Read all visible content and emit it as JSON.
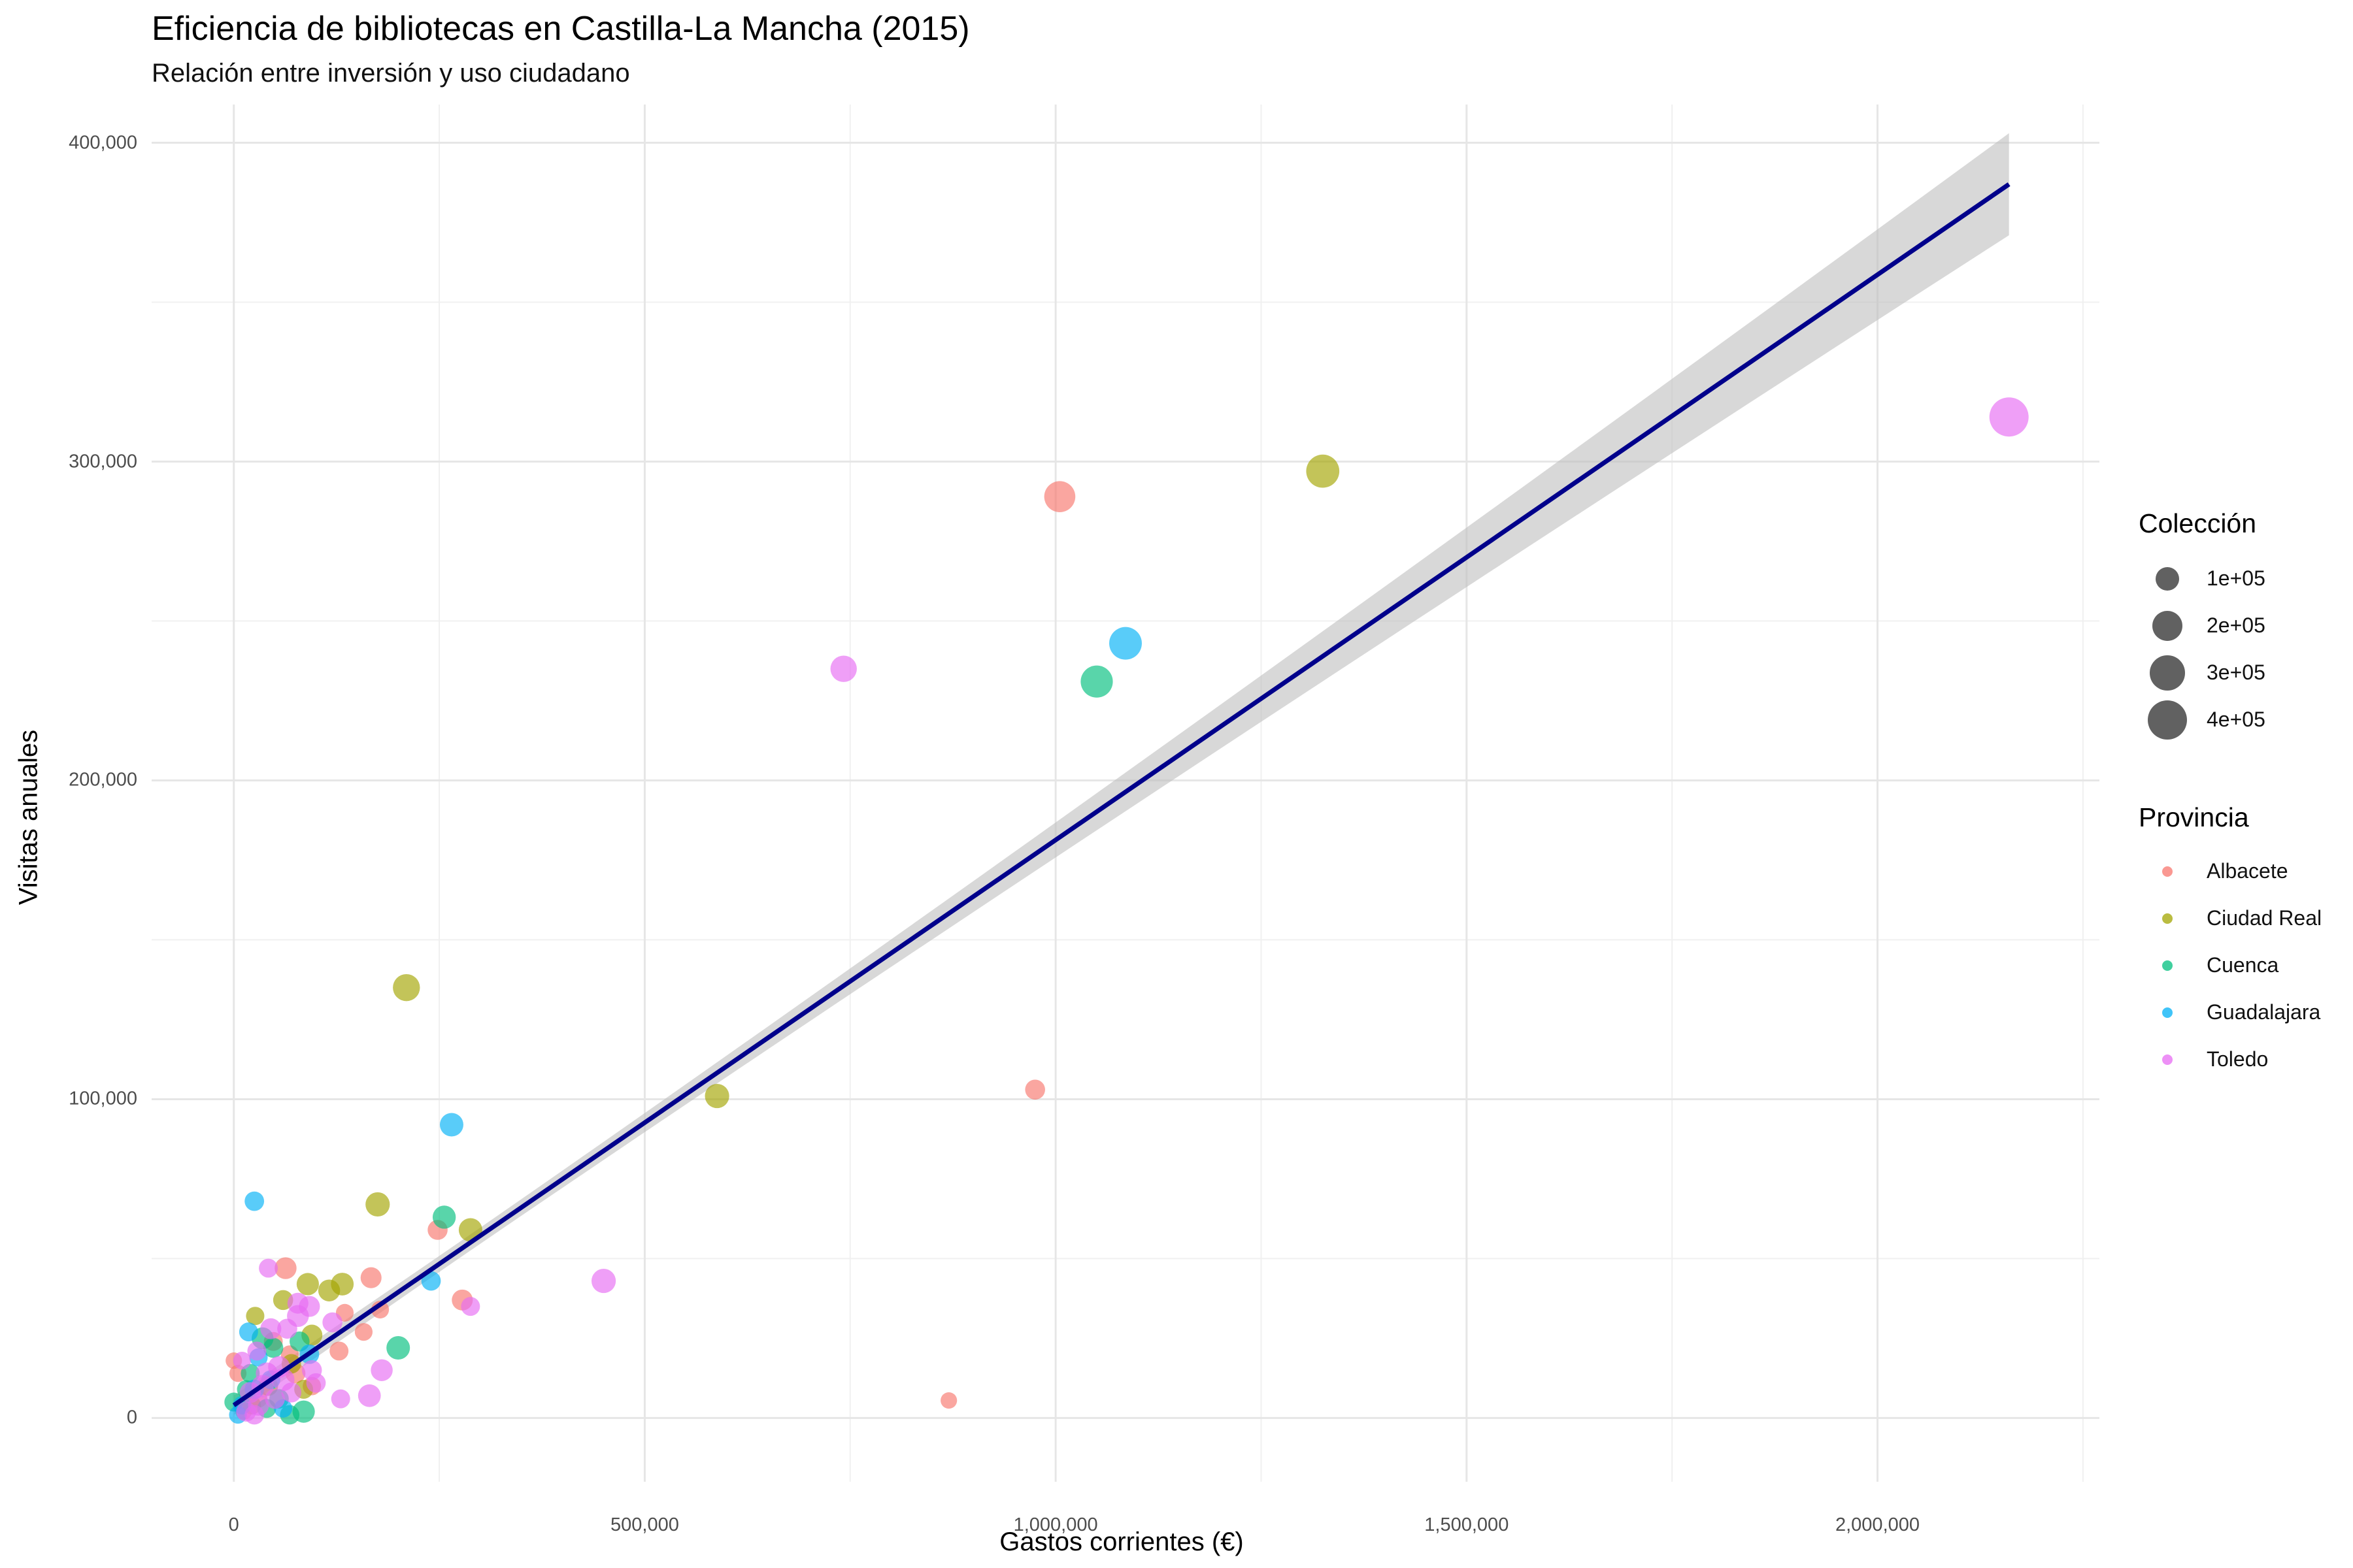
{
  "chart_data": {
    "type": "scatter",
    "title": "Eficiencia de bibliotecas en Castilla-La Mancha (2015)",
    "subtitle": "Relación entre inversión y uso ciudadano",
    "xlabel": "Gastos corrientes (€)",
    "ylabel": "Visitas anuales",
    "xlim": [
      -100000,
      2270000
    ],
    "ylim": [
      -20000,
      412000
    ],
    "x_ticks": [
      {
        "value": 0,
        "label": "0"
      },
      {
        "value": 500000,
        "label": "500,000"
      },
      {
        "value": 1000000,
        "label": "1,000,000"
      },
      {
        "value": 1500000,
        "label": "1,500,000"
      },
      {
        "value": 2000000,
        "label": "2,000,000"
      }
    ],
    "y_ticks": [
      {
        "value": 0,
        "label": "0"
      },
      {
        "value": 100000,
        "label": "100,000"
      },
      {
        "value": 200000,
        "label": "200,000"
      },
      {
        "value": 300000,
        "label": "300,000"
      },
      {
        "value": 400000,
        "label": "400,000"
      }
    ],
    "grid": true,
    "legend_position": "right",
    "trend": {
      "type": "linear",
      "color": "#00008B",
      "ci_color": "#bebebe",
      "x_range": [
        0,
        2160000
      ],
      "y_at_start": 4000,
      "y_at_end": 387000,
      "ci_half_width_start": 2500,
      "ci_half_width_end": 16000
    },
    "size_legend": {
      "title": "Colección",
      "entries": [
        {
          "label": "1e+05",
          "value": 100000
        },
        {
          "label": "2e+05",
          "value": 200000
        },
        {
          "label": "3e+05",
          "value": 300000
        },
        {
          "label": "4e+05",
          "value": 400000
        }
      ]
    },
    "color_legend": {
      "title": "Provincia",
      "entries": [
        {
          "name": "Albacete",
          "color": "#F8766D"
        },
        {
          "name": "Ciudad Real",
          "color": "#A3A500"
        },
        {
          "name": "Cuenca",
          "color": "#00BF7D"
        },
        {
          "name": "Guadalajara",
          "color": "#00B0F6"
        },
        {
          "name": "Toledo",
          "color": "#E76BF3"
        }
      ]
    },
    "series": [
      {
        "name": "Albacete",
        "color": "#F8766D",
        "points": [
          {
            "x": 1005000,
            "y": 289000,
            "size": 220000
          },
          {
            "x": 975000,
            "y": 103000,
            "size": 60000
          },
          {
            "x": 870000,
            "y": 5500,
            "size": 30000
          },
          {
            "x": 248000,
            "y": 59000,
            "size": 60000
          },
          {
            "x": 278000,
            "y": 37000,
            "size": 70000
          },
          {
            "x": 167000,
            "y": 44000,
            "size": 70000
          },
          {
            "x": 63000,
            "y": 47000,
            "size": 80000
          },
          {
            "x": 135000,
            "y": 33000,
            "size": 40000
          },
          {
            "x": 158000,
            "y": 27000,
            "size": 40000
          },
          {
            "x": 128000,
            "y": 21000,
            "size": 50000
          },
          {
            "x": 178000,
            "y": 34000,
            "size": 40000
          },
          {
            "x": 0,
            "y": 18000,
            "size": 30000
          },
          {
            "x": 5000,
            "y": 14000,
            "size": 35000
          },
          {
            "x": 48000,
            "y": 24000,
            "size": 50000
          },
          {
            "x": 75000,
            "y": 14000,
            "size": 60000
          },
          {
            "x": 95000,
            "y": 10000,
            "size": 45000
          },
          {
            "x": 30000,
            "y": 6000,
            "size": 40000
          },
          {
            "x": 12000,
            "y": 2000,
            "size": 30000
          },
          {
            "x": 68000,
            "y": 20000,
            "size": 40000
          }
        ]
      },
      {
        "name": "Ciudad Real",
        "color": "#A3A500",
        "points": [
          {
            "x": 1325000,
            "y": 297000,
            "size": 260000
          },
          {
            "x": 210000,
            "y": 135000,
            "size": 150000
          },
          {
            "x": 588000,
            "y": 101000,
            "size": 110000
          },
          {
            "x": 175000,
            "y": 67000,
            "size": 110000
          },
          {
            "x": 288000,
            "y": 59000,
            "size": 100000
          },
          {
            "x": 132000,
            "y": 42000,
            "size": 90000
          },
          {
            "x": 90000,
            "y": 42000,
            "size": 85000
          },
          {
            "x": 116000,
            "y": 40000,
            "size": 80000
          },
          {
            "x": 60000,
            "y": 37000,
            "size": 60000
          },
          {
            "x": 26000,
            "y": 32000,
            "size": 45000
          },
          {
            "x": 95000,
            "y": 26000,
            "size": 70000
          },
          {
            "x": 70000,
            "y": 17000,
            "size": 55000
          },
          {
            "x": 42000,
            "y": 10000,
            "size": 55000
          },
          {
            "x": 85000,
            "y": 9000,
            "size": 50000
          },
          {
            "x": 22000,
            "y": 4000,
            "size": 45000
          }
        ]
      },
      {
        "name": "Cuenca",
        "color": "#00BF7D",
        "points": [
          {
            "x": 1050000,
            "y": 231000,
            "size": 240000
          },
          {
            "x": 256000,
            "y": 63000,
            "size": 95000
          },
          {
            "x": 200000,
            "y": 22000,
            "size": 100000
          },
          {
            "x": 35000,
            "y": 25000,
            "size": 80000
          },
          {
            "x": 48000,
            "y": 22000,
            "size": 60000
          },
          {
            "x": 80000,
            "y": 24000,
            "size": 60000
          },
          {
            "x": 85000,
            "y": 2000,
            "size": 85000
          },
          {
            "x": 68000,
            "y": 1000,
            "size": 55000
          },
          {
            "x": 20000,
            "y": 14000,
            "size": 50000
          },
          {
            "x": 55000,
            "y": 6000,
            "size": 55000
          },
          {
            "x": 0,
            "y": 5000,
            "size": 50000
          },
          {
            "x": 15000,
            "y": 9000,
            "size": 45000
          },
          {
            "x": 40000,
            "y": 3000,
            "size": 50000
          }
        ]
      },
      {
        "name": "Guadalajara",
        "color": "#00B0F6",
        "points": [
          {
            "x": 1085000,
            "y": 243000,
            "size": 250000
          },
          {
            "x": 265000,
            "y": 92000,
            "size": 100000
          },
          {
            "x": 25000,
            "y": 68000,
            "size": 55000
          },
          {
            "x": 240000,
            "y": 43000,
            "size": 55000
          },
          {
            "x": 18000,
            "y": 27000,
            "size": 50000
          },
          {
            "x": 30000,
            "y": 19000,
            "size": 45000
          },
          {
            "x": 92000,
            "y": 20000,
            "size": 55000
          },
          {
            "x": 10000,
            "y": 4000,
            "size": 45000
          },
          {
            "x": 25000,
            "y": 9000,
            "size": 55000
          },
          {
            "x": 5000,
            "y": 1000,
            "size": 40000
          },
          {
            "x": 45000,
            "y": 12000,
            "size": 50000
          },
          {
            "x": 60000,
            "y": 3000,
            "size": 45000
          }
        ]
      },
      {
        "name": "Toledo",
        "color": "#E76BF3",
        "points": [
          {
            "x": 2160000,
            "y": 314000,
            "size": 400000
          },
          {
            "x": 742000,
            "y": 235000,
            "size": 140000
          },
          {
            "x": 450000,
            "y": 43000,
            "size": 110000
          },
          {
            "x": 42000,
            "y": 47000,
            "size": 50000
          },
          {
            "x": 288000,
            "y": 35000,
            "size": 50000
          },
          {
            "x": 92000,
            "y": 35000,
            "size": 70000
          },
          {
            "x": 78000,
            "y": 36000,
            "size": 70000
          },
          {
            "x": 78000,
            "y": 32000,
            "size": 80000
          },
          {
            "x": 120000,
            "y": 30000,
            "size": 60000
          },
          {
            "x": 180000,
            "y": 15000,
            "size": 80000
          },
          {
            "x": 165000,
            "y": 7000,
            "size": 90000
          },
          {
            "x": 130000,
            "y": 6000,
            "size": 50000
          },
          {
            "x": 95000,
            "y": 15000,
            "size": 60000
          },
          {
            "x": 100000,
            "y": 11000,
            "size": 55000
          },
          {
            "x": 45000,
            "y": 28000,
            "size": 70000
          },
          {
            "x": 65000,
            "y": 28000,
            "size": 60000
          },
          {
            "x": 55000,
            "y": 16000,
            "size": 80000
          },
          {
            "x": 60000,
            "y": 12000,
            "size": 90000
          },
          {
            "x": 35000,
            "y": 10000,
            "size": 85000
          },
          {
            "x": 40000,
            "y": 14000,
            "size": 80000
          },
          {
            "x": 30000,
            "y": 4000,
            "size": 70000
          },
          {
            "x": 20000,
            "y": 8000,
            "size": 70000
          },
          {
            "x": 15000,
            "y": 2000,
            "size": 60000
          },
          {
            "x": 25000,
            "y": 1000,
            "size": 55000
          },
          {
            "x": 50000,
            "y": 6000,
            "size": 60000
          },
          {
            "x": 10000,
            "y": 18000,
            "size": 40000
          },
          {
            "x": 70000,
            "y": 8000,
            "size": 60000
          },
          {
            "x": 28000,
            "y": 21000,
            "size": 50000
          }
        ]
      }
    ]
  }
}
